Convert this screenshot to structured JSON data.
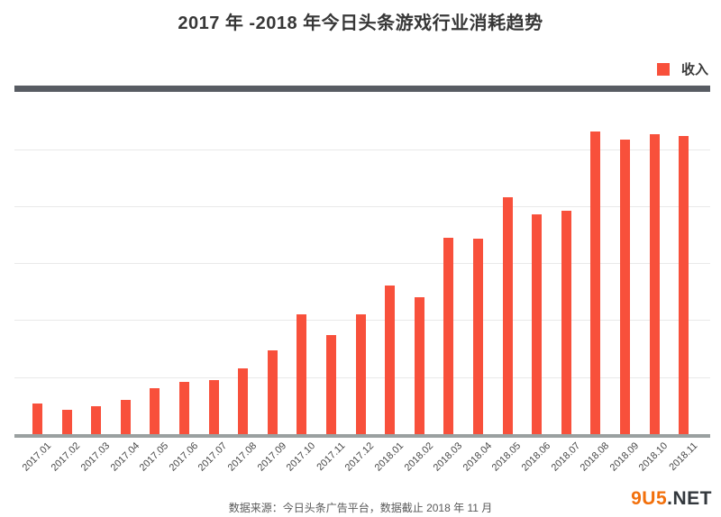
{
  "title": "2017 年 -2018 年今日头条游戏行业消耗趋势",
  "legend": {
    "label": "收入",
    "color": "#f8503b"
  },
  "footer": {
    "source": "数据来源：今日头条广告平台，数据截止 2018 年 11 月",
    "logo_prefix": "9U5",
    "logo_suffix": ".NET",
    "logo_prefix_color": "#f2700c",
    "logo_suffix_color": "#33383d"
  },
  "chart_data": {
    "type": "bar",
    "title": "2017 年 -2018 年今日头条游戏行业消耗趋势",
    "categories": [
      "2017.01",
      "2017.02",
      "2017.03",
      "2017.04",
      "2017.05",
      "2017.06",
      "2017.07",
      "2017.08",
      "2017.09",
      "2017.10",
      "2017.11",
      "2017.12",
      "2018.01",
      "2018.02",
      "2018.03",
      "2018.04",
      "2018.05",
      "2018.06",
      "2018.07",
      "2018.08",
      "2018.09",
      "2018.10",
      "2018.11"
    ],
    "series": [
      {
        "name": "收入",
        "values": [
          8.9,
          7.1,
          8.2,
          10.0,
          13.4,
          15.3,
          15.9,
          19.1,
          24.5,
          34.9,
          29.0,
          34.9,
          43.3,
          40.0,
          57.5,
          57.2,
          69.2,
          64.3,
          65.3,
          88.4,
          86.1,
          87.6,
          87.1
        ]
      }
    ],
    "xlabel": "",
    "ylabel": "",
    "ylim": [
      0,
      100
    ],
    "grid": "horizontal",
    "gridline_count": 5,
    "legend_position": "top-right",
    "bar_color": "#f8503b",
    "baseline_color": "#9aa0a0",
    "top_divider_color": "#585c63"
  }
}
